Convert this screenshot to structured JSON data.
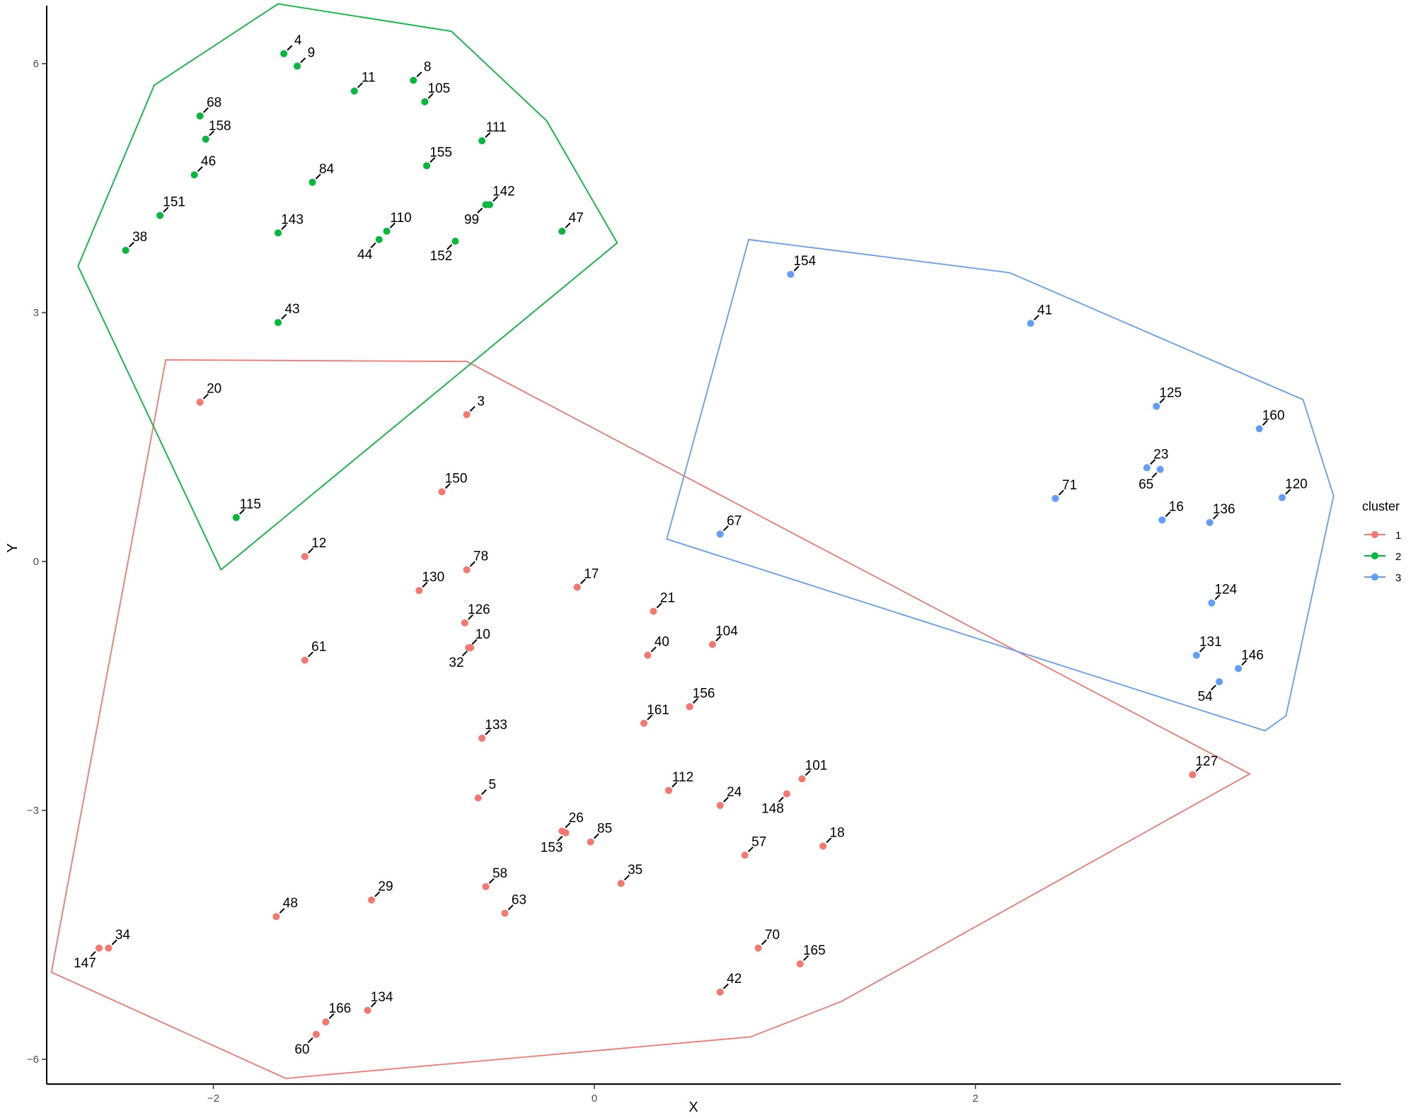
{
  "chart_data": {
    "type": "scatter",
    "xlabel": "X",
    "ylabel": "Y",
    "xlim": [
      -2.8,
      3.9
    ],
    "ylim": [
      -6.3,
      6.7
    ],
    "x_ticks": [
      -2,
      0,
      2
    ],
    "y_ticks": [
      -6,
      -3,
      0,
      3,
      6
    ],
    "grid": false,
    "legend": {
      "title": "cluster",
      "position": "right",
      "entries": [
        {
          "label": "1",
          "color": "#F8766D"
        },
        {
          "label": "2",
          "color": "#00BA38"
        },
        {
          "label": "3",
          "color": "#619CFF"
        }
      ]
    },
    "series": [
      {
        "name": "1",
        "color": "#F8766D",
        "hull": [
          [
            -2.25,
            2.43
          ],
          [
            -0.67,
            2.41
          ],
          [
            3.44,
            -2.56
          ],
          [
            1.3,
            -5.3
          ],
          [
            0.82,
            -5.73
          ],
          [
            -1.62,
            -6.23
          ],
          [
            -2.85,
            -4.95
          ]
        ],
        "points": [
          {
            "label": "20",
            "x": -2.07,
            "y": 1.92
          },
          {
            "label": "3",
            "x": -0.67,
            "y": 1.77
          },
          {
            "label": "150",
            "x": -0.8,
            "y": 0.84
          },
          {
            "label": "12",
            "x": -1.52,
            "y": 0.06
          },
          {
            "label": "78",
            "x": -0.67,
            "y": -0.1
          },
          {
            "label": "17",
            "x": -0.09,
            "y": -0.31
          },
          {
            "label": "130",
            "x": -0.92,
            "y": -0.35
          },
          {
            "label": "21",
            "x": 0.31,
            "y": -0.6
          },
          {
            "label": "126",
            "x": -0.68,
            "y": -0.74
          },
          {
            "label": "10",
            "x": -0.66,
            "y": -1.04
          },
          {
            "label": "61",
            "x": -1.52,
            "y": -1.19
          },
          {
            "label": "104",
            "x": 0.62,
            "y": -1.0
          },
          {
            "label": "40",
            "x": 0.28,
            "y": -1.13
          },
          {
            "label": "32",
            "x": -0.65,
            "y": -1.04
          },
          {
            "label": "156",
            "x": 0.5,
            "y": -1.75
          },
          {
            "label": "161",
            "x": 0.26,
            "y": -1.95
          },
          {
            "label": "133",
            "x": -0.59,
            "y": -2.13
          },
          {
            "label": "101",
            "x": 1.09,
            "y": -2.62
          },
          {
            "label": "127",
            "x": 3.14,
            "y": -2.57
          },
          {
            "label": "148",
            "x": 1.01,
            "y": -2.8
          },
          {
            "label": "112",
            "x": 0.39,
            "y": -2.76
          },
          {
            "label": "5",
            "x": -0.61,
            "y": -2.85
          },
          {
            "label": "24",
            "x": 0.66,
            "y": -2.94
          },
          {
            "label": "26",
            "x": -0.17,
            "y": -3.25
          },
          {
            "label": "153",
            "x": -0.15,
            "y": -3.27
          },
          {
            "label": "85",
            "x": -0.02,
            "y": -3.38
          },
          {
            "label": "57",
            "x": 0.79,
            "y": -3.54
          },
          {
            "label": "18",
            "x": 1.2,
            "y": -3.43
          },
          {
            "label": "58",
            "x": -0.57,
            "y": -3.92
          },
          {
            "label": "35",
            "x": 0.14,
            "y": -3.88
          },
          {
            "label": "29",
            "x": -1.17,
            "y": -4.08
          },
          {
            "label": "48",
            "x": -1.67,
            "y": -4.28
          },
          {
            "label": "63",
            "x": -0.47,
            "y": -4.24
          },
          {
            "label": "34",
            "x": -2.55,
            "y": -4.66
          },
          {
            "label": "147",
            "x": -2.6,
            "y": -4.66
          },
          {
            "label": "70",
            "x": 0.86,
            "y": -4.66
          },
          {
            "label": "165",
            "x": 1.08,
            "y": -4.85
          },
          {
            "label": "42",
            "x": 0.66,
            "y": -5.19
          },
          {
            "label": "134",
            "x": -1.19,
            "y": -5.41
          },
          {
            "label": "166",
            "x": -1.41,
            "y": -5.55
          },
          {
            "label": "60",
            "x": -1.46,
            "y": -5.7
          }
        ]
      },
      {
        "name": "2",
        "color": "#00BA38",
        "hull": [
          [
            -1.66,
            6.72
          ],
          [
            -0.75,
            6.39
          ],
          [
            -0.25,
            5.31
          ],
          [
            0.12,
            3.84
          ],
          [
            -1.96,
            -0.1
          ],
          [
            -2.71,
            3.56
          ],
          [
            -2.31,
            5.74
          ]
        ],
        "points": [
          {
            "label": "4",
            "x": -1.63,
            "y": 6.12
          },
          {
            "label": "9",
            "x": -1.56,
            "y": 5.97
          },
          {
            "label": "8",
            "x": -0.95,
            "y": 5.8
          },
          {
            "label": "11",
            "x": -1.26,
            "y": 5.67
          },
          {
            "label": "105",
            "x": -0.89,
            "y": 5.54
          },
          {
            "label": "68",
            "x": -2.07,
            "y": 5.37
          },
          {
            "label": "158",
            "x": -2.04,
            "y": 5.09
          },
          {
            "label": "111",
            "x": -0.59,
            "y": 5.07
          },
          {
            "label": "155",
            "x": -0.88,
            "y": 4.77
          },
          {
            "label": "84",
            "x": -1.48,
            "y": 4.57
          },
          {
            "label": "46",
            "x": -2.1,
            "y": 4.66
          },
          {
            "label": "142",
            "x": -0.55,
            "y": 4.3
          },
          {
            "label": "151",
            "x": -2.28,
            "y": 4.17
          },
          {
            "label": "110",
            "x": -1.09,
            "y": 3.98
          },
          {
            "label": "143",
            "x": -1.66,
            "y": 3.96
          },
          {
            "label": "99",
            "x": -0.57,
            "y": 4.3
          },
          {
            "label": "44",
            "x": -1.13,
            "y": 3.88
          },
          {
            "label": "152",
            "x": -0.73,
            "y": 3.86
          },
          {
            "label": "47",
            "x": -0.17,
            "y": 3.98
          },
          {
            "label": "38",
            "x": -2.46,
            "y": 3.75
          },
          {
            "label": "43",
            "x": -1.66,
            "y": 2.88
          },
          {
            "label": "115",
            "x": -1.88,
            "y": 0.53
          }
        ]
      },
      {
        "name": "3",
        "color": "#619CFF",
        "hull": [
          [
            0.81,
            3.88
          ],
          [
            2.18,
            3.48
          ],
          [
            3.72,
            1.95
          ],
          [
            3.88,
            0.79
          ],
          [
            3.63,
            -1.86
          ],
          [
            3.52,
            -2.04
          ],
          [
            0.38,
            0.27
          ]
        ],
        "points": [
          {
            "label": "154",
            "x": 1.03,
            "y": 3.46
          },
          {
            "label": "41",
            "x": 2.29,
            "y": 2.87
          },
          {
            "label": "125",
            "x": 2.95,
            "y": 1.87
          },
          {
            "label": "160",
            "x": 3.49,
            "y": 1.6
          },
          {
            "label": "23",
            "x": 2.9,
            "y": 1.13
          },
          {
            "label": "65",
            "x": 2.97,
            "y": 1.11
          },
          {
            "label": "120",
            "x": 3.61,
            "y": 0.77
          },
          {
            "label": "71",
            "x": 2.42,
            "y": 0.76
          },
          {
            "label": "136",
            "x": 3.23,
            "y": 0.47
          },
          {
            "label": "16",
            "x": 2.98,
            "y": 0.5
          },
          {
            "label": "67",
            "x": 0.66,
            "y": 0.33
          },
          {
            "label": "124",
            "x": 3.24,
            "y": -0.5
          },
          {
            "label": "131",
            "x": 3.16,
            "y": -1.13
          },
          {
            "label": "146",
            "x": 3.38,
            "y": -1.29
          },
          {
            "label": "54",
            "x": 3.28,
            "y": -1.45
          }
        ]
      }
    ]
  }
}
